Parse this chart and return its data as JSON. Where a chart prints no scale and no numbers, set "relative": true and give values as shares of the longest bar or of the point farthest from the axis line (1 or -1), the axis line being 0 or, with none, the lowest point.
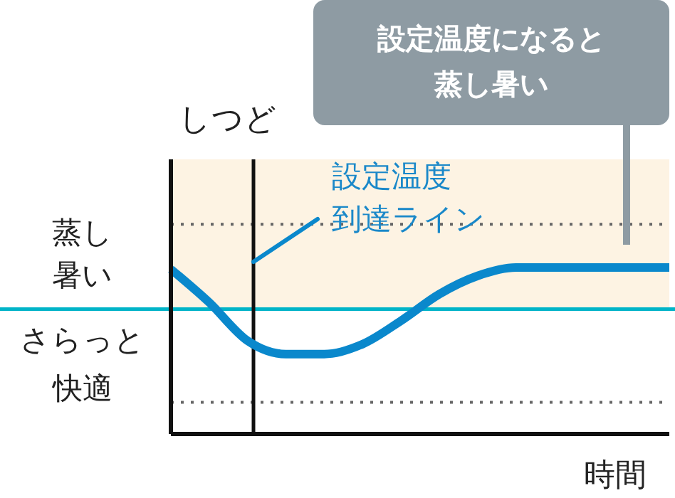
{
  "chart_data": {
    "type": "line",
    "relative": true,
    "ylabel": "しつど",
    "xlabel": "時間",
    "marker": "none",
    "line_style": "solid",
    "categories": [
      null,
      null,
      null,
      null,
      null,
      null,
      null,
      null,
      null,
      null,
      null,
      null,
      null,
      null
    ],
    "series": [
      {
        "color": "#0a88cc",
        "values": [
          0.99,
          0.79,
          0.56,
          0.48,
          0.48,
          0.54,
          0.68,
          0.84,
          0.95,
          1,
          1,
          1,
          1,
          1
        ]
      }
    ],
    "ref_lines": [
      {
        "axis": "y",
        "value": 0.75,
        "color": "#00b4c8",
        "line_style": "solid"
      },
      {
        "axis": "y",
        "value": 1.26,
        "color": "#666666",
        "line_style": "dotted"
      },
      {
        "axis": "y",
        "value": 0.19,
        "color": "#666666",
        "line_style": "dotted"
      }
    ],
    "bands": [
      {
        "axis": "y",
        "from": 0.75,
        "to": 1.65,
        "label": "蒸し暑い",
        "color": "#fdf3e3"
      }
    ],
    "annotations": [
      "設定温度になると蒸し暑い",
      "設定温度到達ライン",
      "さらっと快適"
    ]
  }
}
